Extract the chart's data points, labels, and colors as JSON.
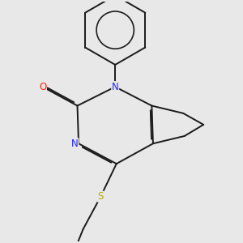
{
  "background_color": "#e8e8e8",
  "bond_color": "#1a1a1a",
  "figsize": [
    3.0,
    3.0
  ],
  "dpi": 100,
  "atom_colors": {
    "N": "#2222ff",
    "O": "#ff2200",
    "S": "#bbaa00"
  },
  "lw": 1.4,
  "fs": 8.5
}
